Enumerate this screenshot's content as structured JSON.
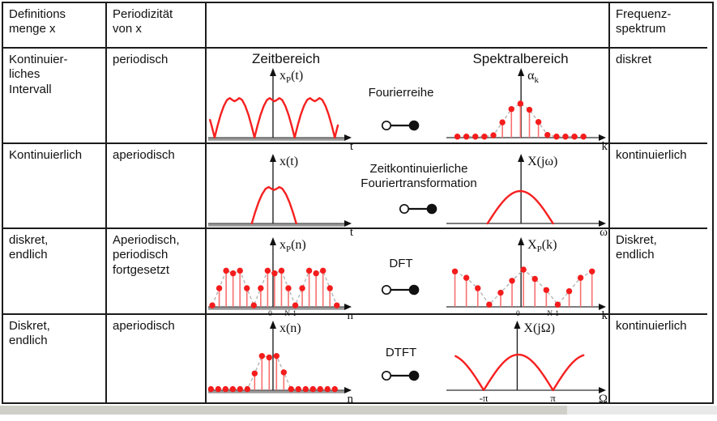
{
  "header": {
    "definition_set": "Definitions\nmenge x",
    "periodicity": "Periodizität\nvon x",
    "plots_header": "",
    "frequency_spectrum": "Frequenz-\nspektrum"
  },
  "plot_headers": {
    "time": "Zeitbereich",
    "spec": "Spektralbereich"
  },
  "colors": {
    "red": "#f62020",
    "stem": "#f87070",
    "dot": "#f51c1c",
    "envelope": "#b5b5b5",
    "baseline_thick": "#9a9a9a",
    "baseline_thin": "#7d7d7d",
    "axis": "#222222",
    "border": "#1c1c1c",
    "text": "#111111"
  },
  "arch_profile": [
    [
      0,
      0
    ],
    [
      0.07,
      0.28
    ],
    [
      0.15,
      0.56
    ],
    [
      0.23,
      0.78
    ],
    [
      0.31,
      0.93
    ],
    [
      0.38,
      0.98
    ],
    [
      0.44,
      0.93
    ],
    [
      0.5,
      0.9
    ],
    [
      0.56,
      0.93
    ],
    [
      0.62,
      0.98
    ],
    [
      0.69,
      0.93
    ],
    [
      0.77,
      0.78
    ],
    [
      0.85,
      0.56
    ],
    [
      0.93,
      0.28
    ],
    [
      1,
      0
    ]
  ],
  "rows": [
    {
      "def": "Kontinuier-\nliches\nIntervall",
      "period": "periodisch",
      "freq": "diskret",
      "transform": "Fourierreihe",
      "time_plot": {
        "kind": "curve",
        "curve": {
          "type": "arches",
          "v": [
            -0.247,
            0.047,
            0.34,
            0.635,
            0.93,
            1.224
          ],
          "clip": [
            0.004,
            0.962
          ]
        },
        "amp": 50,
        "ylabel": [
          "x",
          "P",
          "(t)"
        ],
        "xlabel": "t",
        "axis_frac": 0.476,
        "baseline": "thick"
      },
      "spec_plot": {
        "kind": "stems",
        "x0": 0.072,
        "x1": 0.9,
        "heights": [
          0.03,
          0.03,
          0.03,
          0.03,
          0.07,
          0.45,
          0.84,
          1.0,
          0.82,
          0.46,
          0.08,
          0.03,
          0.03,
          0.03,
          0.03
        ],
        "amp": 42,
        "envelope": true,
        "ylabel": [
          "α",
          "k",
          ""
        ],
        "xlabel": "k",
        "axis_frac": 0.49,
        "baseline": "thin"
      }
    },
    {
      "def": "Kontinuierlich",
      "period": "aperiodisch",
      "freq": "kontinuierlich",
      "transform": "Zeitkontinuierliche\nFouriertransformation",
      "time_plot": {
        "kind": "curve",
        "curve": {
          "type": "arches",
          "v": [
            0.32,
            0.647
          ],
          "clip": [
            0,
            1
          ]
        },
        "amp": 46,
        "ylabel": [
          "x(t)",
          "",
          ""
        ],
        "xlabel": "t",
        "axis_frac": 0.476,
        "baseline": "thick"
      },
      "spec_plot": {
        "kind": "curve",
        "curve": {
          "type": "bell",
          "from": 0.27,
          "to": 0.7
        },
        "amp": 40,
        "ylabel": [
          "X(jω)",
          "",
          ""
        ],
        "xlabel": "ω",
        "axis_frac": 0.49,
        "baseline": "thin"
      }
    },
    {
      "def": "diskret,\nendlich",
      "period": "Aperiodisch,\nperiodisch\nfortgesetzt",
      "freq": "Diskret,\nendlich",
      "transform": "DFT",
      "time_plot": {
        "kind": "stems",
        "x0": 0.03,
        "x1": 0.945,
        "heights": [
          0.04,
          0.5,
          0.97,
          0.9,
          0.97,
          0.5,
          0.04,
          0.5,
          0.97,
          0.9,
          0.97,
          0.5,
          0.04,
          0.5,
          0.97,
          0.9,
          0.97,
          0.5,
          0.04
        ],
        "amp": 46,
        "envelope": true,
        "ylabel": [
          "x",
          "P",
          "(n)"
        ],
        "xlabel": "n",
        "axis_frac": 0.476,
        "baseline": "thick",
        "ticks": [
          {
            "x": 0.455,
            "t": "0"
          },
          {
            "x": 0.605,
            "t": "N-1"
          }
        ],
        "tick_size": 9.5
      },
      "spec_plot": {
        "kind": "stems",
        "x0": 0.056,
        "x1": 0.956,
        "heights": [
          0.95,
          0.78,
          0.5,
          0.06,
          0.38,
          0.7,
          1.0,
          0.75,
          0.45,
          0.06,
          0.42,
          0.78,
          0.95
        ],
        "amp": 46,
        "envelope": true,
        "ylabel": [
          "X",
          "P",
          "(k)"
        ],
        "xlabel": "k",
        "axis_frac": 0.49,
        "baseline": "thin",
        "ticks": [
          {
            "x": 0.47,
            "t": "0"
          },
          {
            "x": 0.7,
            "t": "N-1"
          }
        ],
        "tick_size": 9.5
      }
    },
    {
      "def": "Diskret,\nendlich",
      "period": "aperiodisch",
      "freq": "kontinuierlich",
      "transform": "DTFT",
      "time_plot": {
        "kind": "stems",
        "x0": 0.02,
        "x1": 0.93,
        "heights": [
          0.03,
          0.03,
          0.03,
          0.03,
          0.03,
          0.03,
          0.45,
          0.92,
          0.88,
          0.92,
          0.48,
          0.03,
          0.03,
          0.03,
          0.03,
          0.03,
          0.03,
          0.03
        ],
        "amp": 46,
        "envelope": true,
        "ylabel": [
          "x(n)",
          "",
          ""
        ],
        "xlabel": "n",
        "axis_frac": 0.476,
        "baseline": "thick"
      },
      "spec_plot": {
        "kind": "curve",
        "curve": {
          "type": "abs_sin",
          "cusps": [
            0.245,
            0.7
          ],
          "clip": [
            0.06,
            0.9
          ]
        },
        "amp": 44,
        "ylabel": [
          "X(jΩ)",
          "",
          ""
        ],
        "xlabel": "Ω",
        "axis_frac": 0.465,
        "baseline": "thin",
        "ticks": [
          {
            "x": 0.245,
            "t": "-π"
          },
          {
            "x": 0.7,
            "t": "π"
          }
        ],
        "tick_size": 13
      }
    }
  ]
}
